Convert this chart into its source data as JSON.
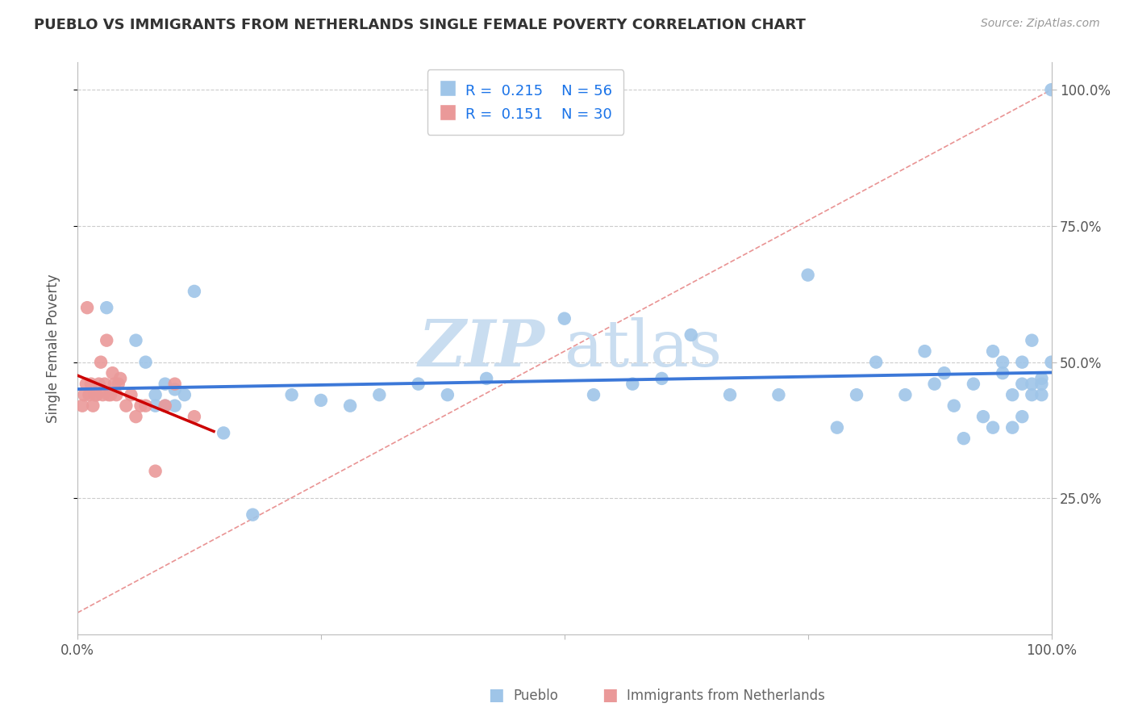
{
  "title": "PUEBLO VS IMMIGRANTS FROM NETHERLANDS SINGLE FEMALE POVERTY CORRELATION CHART",
  "source": "Source: ZipAtlas.com",
  "ylabel": "Single Female Poverty",
  "legend_r1": "0.215",
  "legend_n1": "56",
  "legend_r2": "0.151",
  "legend_n2": "30",
  "xlim": [
    0,
    1.0
  ],
  "ylim": [
    0,
    1.05
  ],
  "x_ticks": [
    0.0,
    0.25,
    0.5,
    0.75,
    1.0
  ],
  "x_tick_labels": [
    "0.0%",
    "",
    "",
    "",
    "100.0%"
  ],
  "y_ticks": [
    0.25,
    0.5,
    0.75,
    1.0
  ],
  "y_tick_labels": [
    "25.0%",
    "50.0%",
    "75.0%",
    "100.0%"
  ],
  "blue_color": "#9fc5e8",
  "pink_color": "#ea9999",
  "blue_line_color": "#3c78d8",
  "pink_line_color": "#cc0000",
  "dashed_line_color": "#e06666",
  "grid_color": "#cccccc",
  "pueblo_x": [
    0.03,
    0.06,
    0.07,
    0.08,
    0.08,
    0.09,
    0.09,
    0.1,
    0.1,
    0.11,
    0.12,
    0.15,
    0.18,
    0.22,
    0.25,
    0.28,
    0.31,
    0.35,
    0.38,
    0.42,
    0.5,
    0.53,
    0.57,
    0.6,
    0.63,
    0.67,
    0.72,
    0.75,
    0.78,
    0.8,
    0.82,
    0.85,
    0.87,
    0.88,
    0.89,
    0.9,
    0.91,
    0.92,
    0.93,
    0.94,
    0.94,
    0.95,
    0.95,
    0.96,
    0.96,
    0.97,
    0.97,
    0.97,
    0.98,
    0.98,
    0.98,
    0.99,
    0.99,
    0.99,
    1.0,
    1.0
  ],
  "pueblo_y": [
    0.6,
    0.54,
    0.5,
    0.42,
    0.44,
    0.42,
    0.46,
    0.42,
    0.45,
    0.44,
    0.63,
    0.37,
    0.22,
    0.44,
    0.43,
    0.42,
    0.44,
    0.46,
    0.44,
    0.47,
    0.58,
    0.44,
    0.46,
    0.47,
    0.55,
    0.44,
    0.44,
    0.66,
    0.38,
    0.44,
    0.5,
    0.44,
    0.52,
    0.46,
    0.48,
    0.42,
    0.36,
    0.46,
    0.4,
    0.38,
    0.52,
    0.5,
    0.48,
    0.44,
    0.38,
    0.46,
    0.5,
    0.4,
    0.44,
    0.54,
    0.46,
    0.47,
    0.44,
    0.46,
    0.5,
    1.0
  ],
  "netherlands_x": [
    0.005,
    0.007,
    0.009,
    0.01,
    0.012,
    0.014,
    0.016,
    0.018,
    0.02,
    0.022,
    0.024,
    0.026,
    0.028,
    0.03,
    0.032,
    0.034,
    0.036,
    0.038,
    0.04,
    0.042,
    0.044,
    0.05,
    0.055,
    0.06,
    0.065,
    0.07,
    0.08,
    0.09,
    0.1,
    0.12
  ],
  "netherlands_y": [
    0.42,
    0.44,
    0.46,
    0.6,
    0.44,
    0.46,
    0.42,
    0.44,
    0.44,
    0.46,
    0.5,
    0.44,
    0.46,
    0.54,
    0.44,
    0.44,
    0.48,
    0.46,
    0.44,
    0.46,
    0.47,
    0.42,
    0.44,
    0.4,
    0.42,
    0.42,
    0.3,
    0.42,
    0.46,
    0.4
  ]
}
